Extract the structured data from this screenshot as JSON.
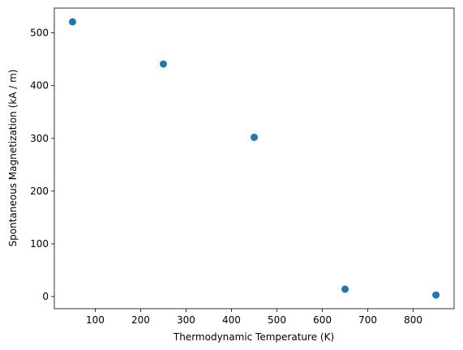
{
  "chart_data": {
    "type": "scatter",
    "x_label": "Thermodynamic Temperature (K)",
    "y_label": "Spontaneous Magnetization (kA / m)",
    "x": [
      50,
      250,
      450,
      650,
      850
    ],
    "values": [
      521,
      441,
      302,
      14,
      3
    ],
    "color": "#1f77b4",
    "xlim": [
      10,
      890
    ],
    "xticks": [
      100,
      200,
      300,
      400,
      500,
      600,
      700,
      800
    ],
    "ylim": [
      -23,
      547
    ],
    "yticks": [
      0,
      100,
      200,
      300,
      400,
      500
    ],
    "grid": false
  }
}
